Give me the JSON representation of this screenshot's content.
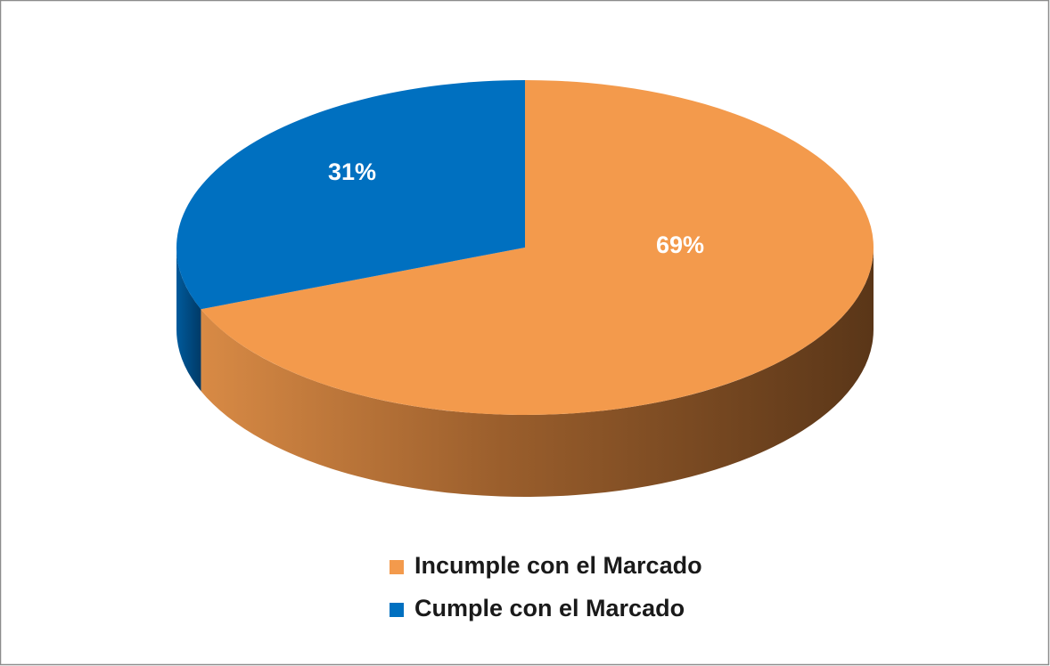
{
  "chart_data": {
    "type": "pie",
    "categories": [
      "Incumple con el Marcado",
      "Cumple con el Marcado"
    ],
    "values": [
      69,
      31
    ],
    "value_labels": [
      "69%",
      "31%"
    ],
    "colors": [
      "#f39a4c",
      "#0070c0"
    ],
    "legend": "bottom"
  }
}
